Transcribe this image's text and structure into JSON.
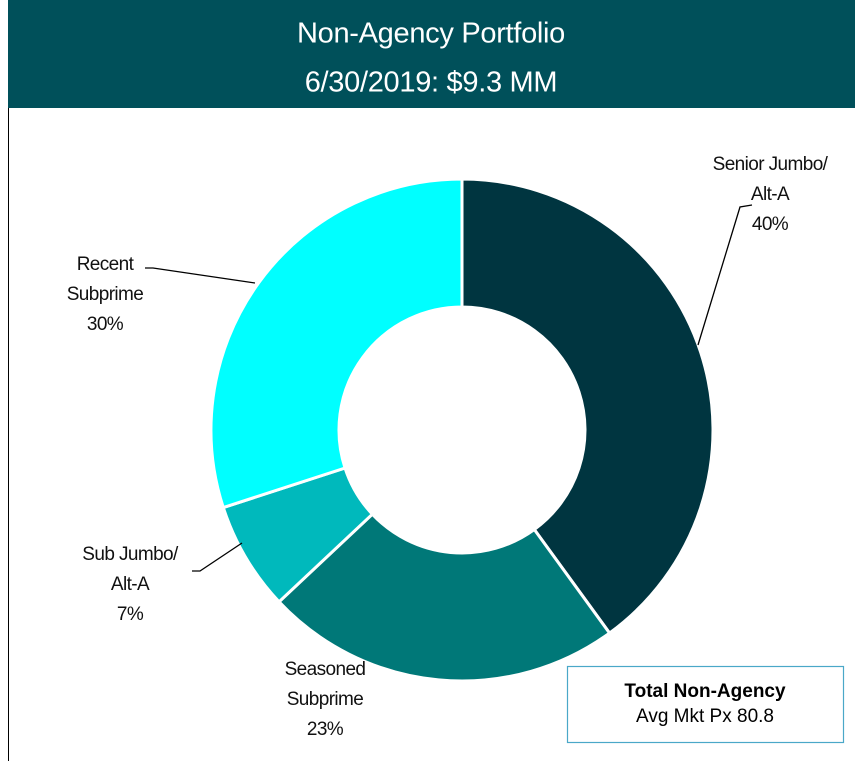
{
  "chart_data": {
    "type": "donut",
    "title": "Non-Agency Portfolio",
    "subtitle": "6/30/2019: $9.3 MM",
    "categories": [
      [
        "Senior Jumbo/",
        "Alt-A"
      ],
      [
        "Seasoned",
        "Subprime"
      ],
      [
        "Sub Jumbo/",
        "Alt-A"
      ],
      [
        "Recent",
        "Subprime"
      ]
    ],
    "values": [
      40,
      23,
      7,
      30
    ],
    "value_labels": [
      "40%",
      "23%",
      "7%",
      "30%"
    ],
    "colors": [
      "#003540",
      "#007878",
      "#00b9bc",
      "#00ffff"
    ],
    "annotation": {
      "title": "Total Non-Agency",
      "text": "Avg Mkt Px 80.8"
    }
  }
}
